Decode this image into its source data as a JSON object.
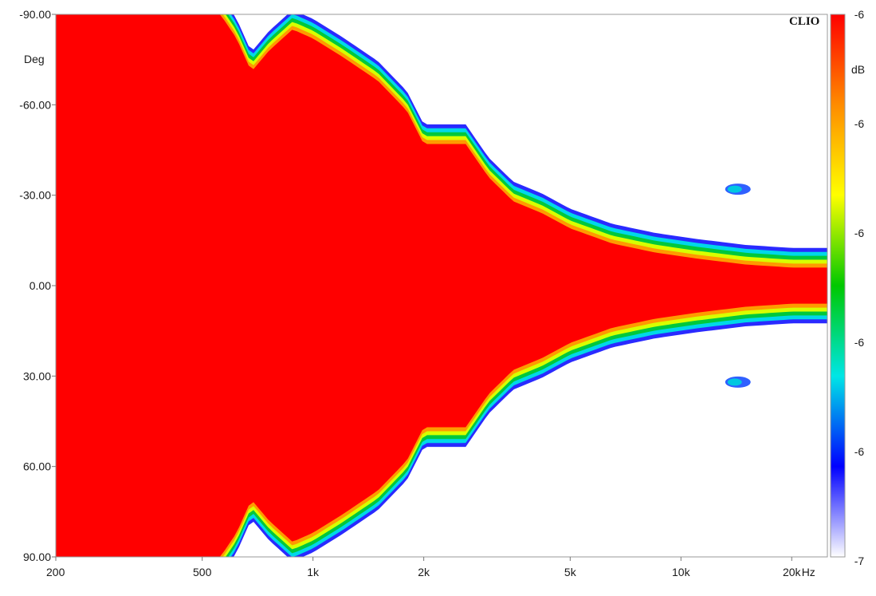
{
  "brand": "CLIO",
  "chart_data": {
    "type": "heatmap",
    "title": "",
    "xlabel": "",
    "ylabel": "Deg",
    "x_unit": "Hz",
    "x_scale": "log",
    "xlim": [
      200,
      25000
    ],
    "ylim": [
      -90,
      90
    ],
    "y_reversed": true,
    "x_ticks": [
      {
        "value": 200,
        "label": "200"
      },
      {
        "value": 500,
        "label": "500"
      },
      {
        "value": 1000,
        "label": "1k"
      },
      {
        "value": 2000,
        "label": "2k"
      },
      {
        "value": 5000,
        "label": "5k"
      },
      {
        "value": 10000,
        "label": "10k"
      },
      {
        "value": 20000,
        "label": "20k"
      }
    ],
    "y_ticks": [
      {
        "value": -90,
        "label": "-90.00"
      },
      {
        "value": -60,
        "label": "-60.00"
      },
      {
        "value": -30,
        "label": "-30.00"
      },
      {
        "value": 0,
        "label": "0.00"
      },
      {
        "value": 30,
        "label": "30.00"
      },
      {
        "value": 60,
        "label": "60.00"
      },
      {
        "value": 90,
        "label": "90.00"
      }
    ],
    "colorbar": {
      "unit": "dB",
      "tick_labels": [
        "-6",
        "-6",
        "-6",
        "-6",
        "-6",
        "-7"
      ],
      "colors": [
        "#ff0000",
        "#ff8c00",
        "#ffff00",
        "#00c800",
        "#00e6e6",
        "#0000ff",
        "#ffffff"
      ]
    },
    "red_region_boundary": {
      "description": "angle (deg) at which the map leaves the red (top) colour band, per frequency; symmetric about 0",
      "freq_hz": [
        200,
        450,
        560,
        620,
        680,
        760,
        880,
        1000,
        1200,
        1500,
        1800,
        2000,
        2300,
        2600,
        3000,
        3500,
        4200,
        5000,
        6500,
        8500,
        11000,
        15000,
        20000,
        24000
      ],
      "angle_deg": [
        90,
        90,
        90,
        82,
        71,
        78,
        85,
        82,
        76,
        68,
        58,
        47,
        47,
        47,
        36,
        28,
        24,
        19,
        14,
        11,
        9,
        7,
        6,
        6
      ]
    },
    "annotations": [
      {
        "type": "blob",
        "freq_hz": 14000,
        "angle_deg": -32
      },
      {
        "type": "blob",
        "freq_hz": 14000,
        "angle_deg": 32
      }
    ]
  }
}
